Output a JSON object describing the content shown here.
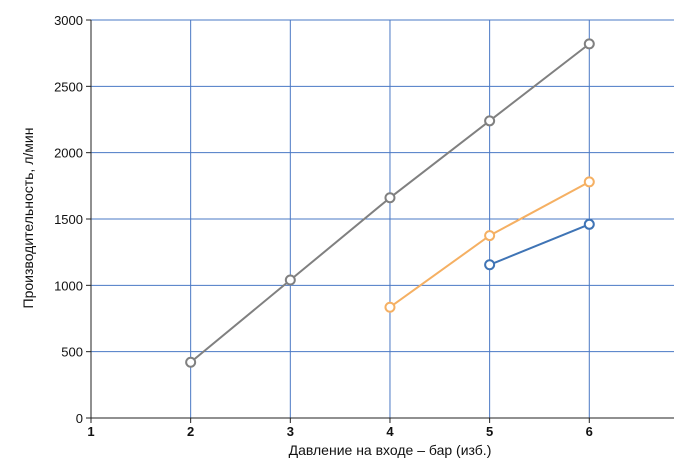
{
  "chart_data": {
    "type": "line",
    "title": "",
    "xlabel": "Давление на входе – бар (изб.)",
    "ylabel": "Производительность, л/мин",
    "xlim": [
      1,
      6.85
    ],
    "ylim": [
      0,
      3000
    ],
    "xticks": [
      1,
      2,
      3,
      4,
      5,
      6
    ],
    "yticks": [
      0,
      500,
      1000,
      1500,
      2000,
      2500,
      3000
    ],
    "grid": true,
    "legend": "none",
    "series": [
      {
        "color": "#808080",
        "x": [
          2,
          3,
          4,
          5,
          6
        ],
        "y": [
          420,
          1040,
          1660,
          2240,
          2820
        ]
      },
      {
        "color": "#f5b063",
        "x": [
          4,
          5,
          6
        ],
        "y": [
          835,
          1375,
          1780
        ]
      },
      {
        "color": "#3f74b5",
        "x": [
          5,
          6
        ],
        "y": [
          1155,
          1460
        ]
      }
    ]
  },
  "colors": {
    "grid": "#4a78c4",
    "axis": "#222222"
  }
}
